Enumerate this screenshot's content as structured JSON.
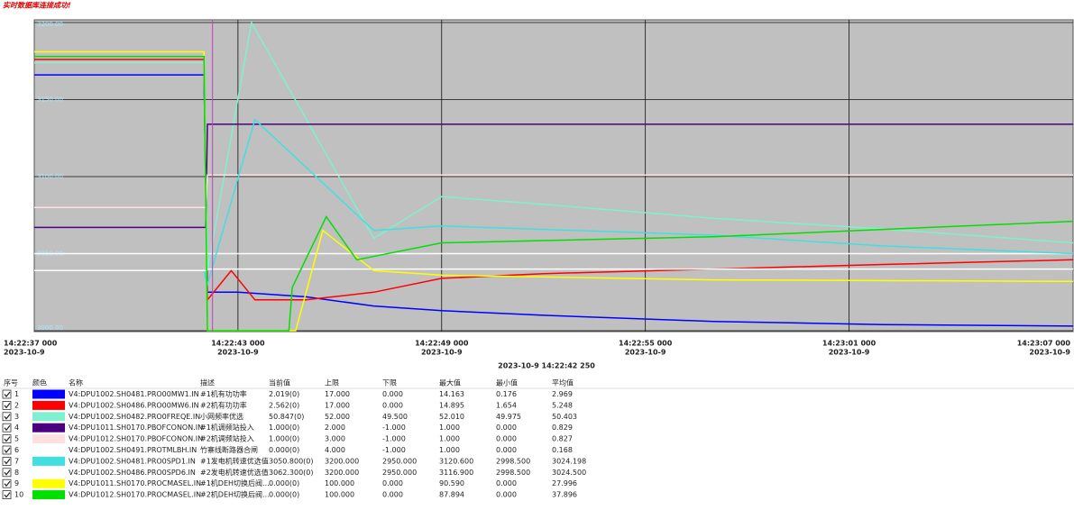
{
  "header": {
    "status": "实时数据库连接成功!"
  },
  "chart_data": {
    "type": "line",
    "xlim": [
      0,
      30.6
    ],
    "xticks": [
      {
        "value": 0,
        "label": "14:22:37 000"
      },
      {
        "value": 6,
        "label": "14:22:43 000"
      },
      {
        "value": 12,
        "label": "14:22:49 000"
      },
      {
        "value": 18,
        "label": "14:22:55 000"
      },
      {
        "value": 24,
        "label": "14:23:01 000"
      },
      {
        "value": 30,
        "label": "14:23:07 000"
      }
    ],
    "xtick_dates": [
      "2023-10-9",
      "2023-10-9",
      "2023-10-9",
      "2023-10-9",
      "2023-10-9",
      "2023-10-9"
    ],
    "ylim": [
      3000,
      3200
    ],
    "yticks": [
      {
        "value": 3200,
        "label": "3200.00"
      },
      {
        "value": 3150,
        "label": "3150.00"
      },
      {
        "value": 3100,
        "label": "3100.00"
      },
      {
        "value": 3050,
        "label": "3050.00"
      },
      {
        "value": 3000,
        "label": "3000.00"
      }
    ],
    "grid": true,
    "cursor": {
      "x": 5.25,
      "label": "2023-10-9 14:22:42 250"
    },
    "series": [
      {
        "color": "#0000ff",
        "x": [
          0,
          5.0,
          5.1,
          6,
          8,
          10,
          12,
          15,
          20,
          25,
          30.6
        ],
        "values": [
          3166,
          3166,
          3025,
          3025,
          3022,
          3016,
          3013,
          3010,
          3006,
          3004,
          3003
        ]
      },
      {
        "color": "#ff0000",
        "x": [
          0,
          5.0,
          5.1,
          5.8,
          6.5,
          8,
          10,
          12,
          15,
          20,
          25,
          30.6
        ],
        "values": [
          3176,
          3176,
          3020,
          3039,
          3020,
          3020,
          3025,
          3034,
          3037,
          3040,
          3043,
          3046
        ]
      },
      {
        "color": "#80f0d0",
        "x": [
          0,
          5.0,
          5.1,
          6.4,
          10,
          12,
          15,
          20,
          25,
          30.6
        ],
        "values": [
          3174,
          3174,
          3039,
          3200,
          3060,
          3087,
          3082,
          3073,
          3066,
          3057
        ]
      },
      {
        "color": "#4b0082",
        "x": [
          0,
          5.05,
          5.1,
          30.6
        ],
        "values": [
          3067,
          3067,
          3134,
          3134
        ]
      },
      {
        "color": "#ffe0e0",
        "x": [
          0,
          5.05,
          5.1,
          30.6
        ],
        "values": [
          3080,
          3080,
          3101,
          3101
        ]
      },
      {
        "color": "#ffffff",
        "x": [
          0,
          5.05,
          5.1,
          30.6
        ],
        "values": [
          3050,
          3050,
          3050,
          3050
        ]
      },
      {
        "color": "#40e0e0",
        "x": [
          0,
          5.0,
          5.1,
          6.5,
          10,
          12,
          20,
          25,
          30.6
        ],
        "values": [
          3039,
          3039,
          3030,
          3137,
          3065,
          3068,
          3062,
          3055,
          3050
        ]
      },
      {
        "color": "#ffffff",
        "x": [
          0,
          5.05,
          5.1,
          30.6
        ],
        "values": [
          3039,
          3039,
          3040,
          3040
        ]
      },
      {
        "color": "#ffff00",
        "x": [
          0,
          5.0,
          5.1,
          7.7,
          8.5,
          10,
          12,
          20,
          30.6
        ],
        "values": [
          3181,
          3181,
          3000,
          3000,
          3065,
          3039,
          3036,
          3033,
          3032
        ]
      },
      {
        "color": "#00e000",
        "x": [
          0,
          5.0,
          5.1,
          7.5,
          7.6,
          8.6,
          9.5,
          12,
          20,
          30.6
        ],
        "values": [
          3178,
          3178,
          3000,
          3000,
          3028,
          3074,
          3046,
          3057,
          3061,
          3071
        ]
      }
    ]
  },
  "table": {
    "columns": [
      "序号",
      "颜色",
      "名称",
      "描述",
      "当前值",
      "上限",
      "下限",
      "最大值",
      "最小值",
      "平均值"
    ],
    "rows": [
      [
        "1",
        "V4:DPU1002.SH0481.PRO00MW1.IN",
        "#1机有功功率",
        "2.019(0)",
        "17.000",
        "0.000",
        "14.163",
        "0.176",
        "2.969"
      ],
      [
        "2",
        "V4:DPU1002.SH0486.PRO00MW6.IN",
        "#2机有功功率",
        "2.562(0)",
        "17.000",
        "0.000",
        "14.895",
        "1.654",
        "5.248"
      ],
      [
        "3",
        "V4:DPU1002.SH0482.PRO0FREQE.IN",
        "小网频率优选",
        "50.847(0)",
        "52.000",
        "49.500",
        "52.010",
        "49.975",
        "50.403"
      ],
      [
        "4",
        "V4:DPU1011.SH0170.PBOFCONON.IN",
        "#1机调频站投入",
        "1.000(0)",
        "2.000",
        "-1.000",
        "1.000",
        "0.000",
        "0.829"
      ],
      [
        "5",
        "V4:DPU1012.SH0170.PBOFCONON.IN",
        "#2机调频站投入",
        "1.000(0)",
        "3.000",
        "-1.000",
        "1.000",
        "0.000",
        "0.827"
      ],
      [
        "6",
        "V4:DPU1002.SH0491.PROTMLBH.IN",
        "竹寨线断路器合闸",
        "0.000(0)",
        "4.000",
        "-1.000",
        "1.000",
        "0.000",
        "0.168"
      ],
      [
        "7",
        "V4:DPU1002.SH0481.PRO0SPD1.IN",
        "#1发电机转速优选值",
        "3050.800(0)",
        "3200.000",
        "2950.000",
        "3120.600",
        "2998.500",
        "3024.198"
      ],
      [
        "8",
        "V4:DPU1002.SH0486.PRO0SPD6.IN",
        "#2发电机转速优选值",
        "3062.300(0)",
        "3200.000",
        "2950.000",
        "3116.900",
        "2998.500",
        "3024.500"
      ],
      [
        "9",
        "V4:DPU1011.SH0170.PROCMASEL.IN",
        "#1机DEH切换后阀...",
        "0.000(0)",
        "100.000",
        "0.000",
        "90.590",
        "0.000",
        "27.996"
      ],
      [
        "10",
        "V4:DPU1012.SH0170.PROCMASEL.IN",
        "#2机DEH切换后阀...",
        "0.000(0)",
        "100.000",
        "0.000",
        "87.894",
        "0.000",
        "37.896"
      ]
    ]
  }
}
